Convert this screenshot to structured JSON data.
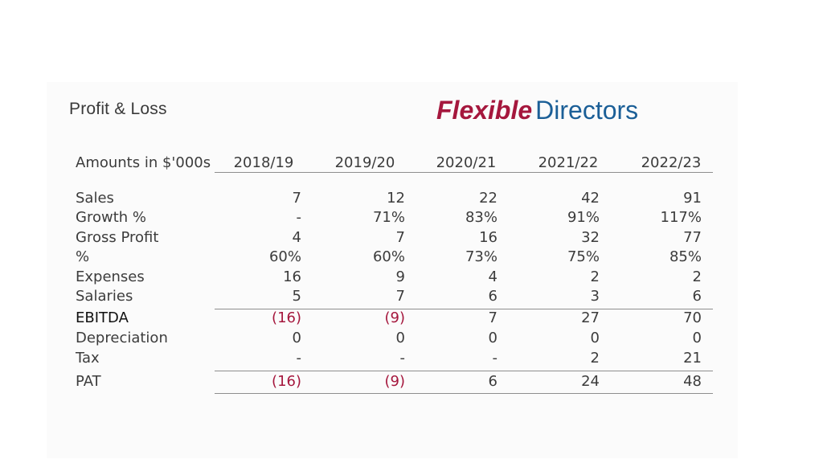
{
  "title": "Profit & Loss",
  "brand": {
    "part1": "Flexible",
    "part2": "Directors",
    "colors": {
      "part1": "#a5173d",
      "part2": "#1b5f97"
    }
  },
  "table": {
    "header_label": "Amounts in $'000s",
    "years": [
      "2018/19",
      "2019/20",
      "2020/21",
      "2021/22",
      "2022/23"
    ],
    "rows": [
      {
        "label": "Sales",
        "values": [
          "7",
          "12",
          "22",
          "42",
          "91"
        ]
      },
      {
        "label": "Growth %",
        "values": [
          "-",
          "71%",
          "83%",
          "91%",
          "117%"
        ]
      },
      {
        "label": "Gross Profit",
        "values": [
          "4",
          "7",
          "16",
          "32",
          "77"
        ]
      },
      {
        "label": "%",
        "values": [
          "60%",
          "60%",
          "73%",
          "75%",
          "85%"
        ]
      },
      {
        "label": "Expenses",
        "values": [
          "16",
          "9",
          "4",
          "2",
          "2"
        ]
      },
      {
        "label": "Salaries",
        "values": [
          "5",
          "7",
          "6",
          "3",
          "6"
        ]
      },
      {
        "label": "EBITDA",
        "values": [
          "(16)",
          "(9)",
          "7",
          "27",
          "70"
        ]
      },
      {
        "label": "Depreciation",
        "values": [
          "0",
          "0",
          "0",
          "0",
          "0"
        ]
      },
      {
        "label": "Tax",
        "values": [
          "-",
          "-",
          "-",
          "2",
          "21"
        ]
      },
      {
        "label": "PAT",
        "values": [
          "(16)",
          "(9)",
          "6",
          "24",
          "48"
        ]
      }
    ],
    "negative_color": "#a5173d"
  }
}
